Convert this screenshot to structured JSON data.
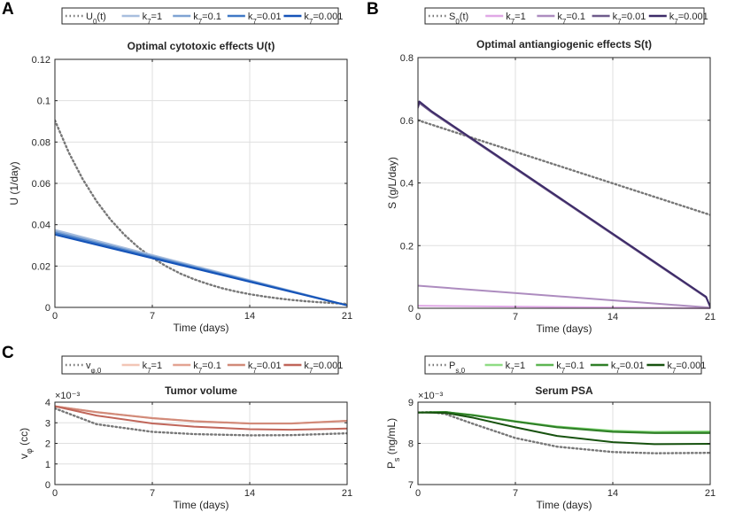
{
  "figure": {
    "panel_labels": [
      "A",
      "B",
      "C"
    ]
  },
  "chart_data": [
    {
      "type": "line",
      "panel_label": "A",
      "title": "Optimal cytotoxic effects U(t)",
      "xlabel": "Time (days)",
      "ylabel": "U (1/day)",
      "xlim": [
        0,
        21
      ],
      "ylim": [
        0,
        0.12
      ],
      "xticks": [
        0,
        7,
        14,
        21
      ],
      "xtick_labels": [
        "0",
        "7",
        "14",
        "21"
      ],
      "yticks": [
        0,
        0.02,
        0.04,
        0.06,
        0.08,
        0.1,
        0.12
      ],
      "ytick_labels": [
        "0",
        "0.02",
        "0.04",
        "0.06",
        "0.08",
        "0.1",
        "0.12"
      ],
      "exponent_label": "",
      "legend": [
        {
          "base": "U",
          "sub": "0",
          "tail": "(t)",
          "color": "#777777",
          "dash": true
        },
        {
          "base": "k",
          "sub": "7",
          "tail": "=1",
          "color": "#a8bede",
          "dash": false
        },
        {
          "base": "k",
          "sub": "7",
          "tail": "=0.1",
          "color": "#7fa3d3",
          "dash": false
        },
        {
          "base": "k",
          "sub": "7",
          "tail": "=0.01",
          "color": "#3f78c6",
          "dash": false
        },
        {
          "base": "k",
          "sub": "7",
          "tail": "=0.001",
          "color": "#1553b8",
          "dash": false
        }
      ],
      "series": [
        {
          "name": "U0(t)",
          "color": "#777777",
          "dash": true,
          "x": [
            0,
            1,
            2,
            3,
            4,
            5,
            6,
            7,
            8,
            9,
            10,
            11,
            12,
            13,
            14,
            15,
            16,
            17,
            18,
            19,
            20,
            21
          ],
          "y": [
            0.0905,
            0.0749,
            0.062,
            0.0513,
            0.0424,
            0.0351,
            0.029,
            0.024,
            0.0199,
            0.0164,
            0.0136,
            0.0113,
            0.0093,
            0.0077,
            0.0064,
            0.0053,
            0.0044,
            0.0036,
            0.003,
            0.0025,
            0.0021,
            0.0017
          ]
        },
        {
          "name": "k7=1",
          "color": "#a8bede",
          "dash": false,
          "x": [
            0,
            21
          ],
          "y": [
            0.0375,
            0.001
          ]
        },
        {
          "name": "k7=0.1",
          "color": "#7fa3d3",
          "dash": false,
          "x": [
            0,
            21
          ],
          "y": [
            0.0367,
            0.001
          ]
        },
        {
          "name": "k7=0.01",
          "color": "#3f78c6",
          "dash": false,
          "x": [
            0,
            21
          ],
          "y": [
            0.036,
            0.001
          ]
        },
        {
          "name": "k7=0.001",
          "color": "#1553b8",
          "dash": false,
          "x": [
            0,
            21
          ],
          "y": [
            0.0352,
            0.001
          ]
        }
      ]
    },
    {
      "type": "line",
      "panel_label": "B",
      "title": "Optimal antiangiogenic effects S(t)",
      "xlabel": "Time (days)",
      "ylabel": "S (g/L/day)",
      "xlim": [
        0,
        21
      ],
      "ylim": [
        0,
        0.8
      ],
      "xticks": [
        0,
        7,
        14,
        21
      ],
      "xtick_labels": [
        "0",
        "7",
        "14",
        "21"
      ],
      "yticks": [
        0,
        0.2,
        0.4,
        0.6,
        0.8
      ],
      "ytick_labels": [
        "0",
        "0.2",
        "0.4",
        "0.6",
        "0.8"
      ],
      "exponent_label": "",
      "legend": [
        {
          "base": "S",
          "sub": "0",
          "tail": "(t)",
          "color": "#777777",
          "dash": true
        },
        {
          "base": "k",
          "sub": "7",
          "tail": "=1",
          "color": "#e0a8e6",
          "dash": false
        },
        {
          "base": "k",
          "sub": "7",
          "tail": "=0.1",
          "color": "#ad8cbf",
          "dash": false
        },
        {
          "base": "k",
          "sub": "7",
          "tail": "=0.01",
          "color": "#6f5b8b",
          "dash": false
        },
        {
          "base": "k",
          "sub": "7",
          "tail": "=0.001",
          "color": "#3d2b68",
          "dash": false
        }
      ],
      "series": [
        {
          "name": "S0(t)",
          "color": "#777777",
          "dash": true,
          "x": [
            0,
            21
          ],
          "y": [
            0.6,
            0.298
          ]
        },
        {
          "name": "k7=1",
          "color": "#e0a8e6",
          "dash": false,
          "x": [
            0,
            21
          ],
          "y": [
            0.008,
            0.0
          ]
        },
        {
          "name": "k7=0.1",
          "color": "#ad8cbf",
          "dash": false,
          "x": [
            0,
            21
          ],
          "y": [
            0.072,
            0.002
          ]
        },
        {
          "name": "k7=0.01",
          "color": "#6f5b8b",
          "dash": false,
          "x": [
            0,
            0.1,
            1,
            20.7,
            21
          ],
          "y": [
            0.64,
            0.655,
            0.625,
            0.035,
            0.005
          ]
        },
        {
          "name": "k7=0.001",
          "color": "#3d2b68",
          "dash": false,
          "x": [
            0,
            0.1,
            1,
            20.7,
            21
          ],
          "y": [
            0.645,
            0.66,
            0.628,
            0.037,
            0.005
          ]
        }
      ]
    },
    {
      "type": "line",
      "panel_label": "C",
      "title": "Tumor volume",
      "xlabel": "Time (days)",
      "ylabel": "vφ (cc)",
      "ylabel_base": "v",
      "ylabel_sub": "φ",
      "ylabel_tail": " (cc)",
      "xlim": [
        0,
        21
      ],
      "ylim": [
        0,
        0.004
      ],
      "xticks": [
        0,
        7,
        14,
        21
      ],
      "xtick_labels": [
        "0",
        "7",
        "14",
        "21"
      ],
      "yticks": [
        0,
        0.001,
        0.002,
        0.003,
        0.004
      ],
      "ytick_labels": [
        "0",
        "1",
        "2",
        "3",
        "4"
      ],
      "exponent_label": "×10⁻³",
      "legend": [
        {
          "base": "v",
          "sub": "φ,0",
          "tail": "",
          "color": "#777777",
          "dash": true
        },
        {
          "base": "k",
          "sub": "7",
          "tail": "=1",
          "color": "#f2c6b6",
          "dash": false
        },
        {
          "base": "k",
          "sub": "7",
          "tail": "=0.1",
          "color": "#e3a392",
          "dash": false
        },
        {
          "base": "k",
          "sub": "7",
          "tail": "=0.01",
          "color": "#d18a79",
          "dash": false
        },
        {
          "base": "k",
          "sub": "7",
          "tail": "=0.001",
          "color": "#c0665a",
          "dash": false
        }
      ],
      "series": [
        {
          "name": "vφ,0",
          "color": "#777777",
          "dash": true,
          "x": [
            0,
            3,
            7,
            10,
            14,
            17,
            21
          ],
          "y": [
            0.0037,
            0.00293,
            0.00256,
            0.00245,
            0.00239,
            0.0024,
            0.00249
          ]
        },
        {
          "name": "k7=1",
          "color": "#f2c6b6",
          "dash": false,
          "x": [
            0,
            3,
            7,
            10,
            14,
            17,
            21
          ],
          "y": [
            0.0038,
            0.00352,
            0.00323,
            0.00308,
            0.00297,
            0.00297,
            0.00309
          ]
        },
        {
          "name": "k7=0.1",
          "color": "#e3a392",
          "dash": false,
          "x": [
            0,
            3,
            7,
            10,
            14,
            17,
            21
          ],
          "y": [
            0.0038,
            0.00352,
            0.00323,
            0.00308,
            0.00297,
            0.00297,
            0.0031
          ]
        },
        {
          "name": "k7=0.01",
          "color": "#d18a79",
          "dash": false,
          "x": [
            0,
            3,
            7,
            10,
            14,
            17,
            21
          ],
          "y": [
            0.0038,
            0.00351,
            0.00322,
            0.00307,
            0.00296,
            0.00296,
            0.00309
          ]
        },
        {
          "name": "k7=0.001",
          "color": "#c0665a",
          "dash": false,
          "x": [
            0,
            3,
            7,
            10,
            14,
            17,
            21
          ],
          "y": [
            0.0038,
            0.00335,
            0.00297,
            0.00281,
            0.00269,
            0.00266,
            0.00272
          ]
        }
      ]
    },
    {
      "type": "line",
      "panel_label": "",
      "title": "Serum PSA",
      "xlabel": "Time (days)",
      "ylabel": "Ps (ng/mL)",
      "ylabel_base": "P",
      "ylabel_sub": "s",
      "ylabel_tail": " (ng/mL)",
      "xlim": [
        0,
        21
      ],
      "ylim": [
        0.007,
        0.009
      ],
      "xticks": [
        0,
        7,
        14,
        21
      ],
      "xtick_labels": [
        "0",
        "7",
        "14",
        "21"
      ],
      "yticks": [
        0.007,
        0.008,
        0.009
      ],
      "ytick_labels": [
        "7",
        "8",
        "9"
      ],
      "exponent_label": "×10⁻³",
      "legend": [
        {
          "base": "P",
          "sub": "s,0",
          "tail": "",
          "color": "#777777",
          "dash": true
        },
        {
          "base": "k",
          "sub": "7",
          "tail": "=1",
          "color": "#8fdc84",
          "dash": false
        },
        {
          "base": "k",
          "sub": "7",
          "tail": "=0.1",
          "color": "#5db552",
          "dash": false
        },
        {
          "base": "k",
          "sub": "7",
          "tail": "=0.01",
          "color": "#2f7f27",
          "dash": false
        },
        {
          "base": "k",
          "sub": "7",
          "tail": "=0.001",
          "color": "#17520f",
          "dash": false
        }
      ],
      "series": [
        {
          "name": "Ps,0",
          "color": "#777777",
          "dash": true,
          "x": [
            0,
            1,
            2,
            4,
            7,
            10,
            14,
            17,
            21
          ],
          "y": [
            0.00875,
            0.00876,
            0.00871,
            0.00847,
            0.00813,
            0.00792,
            0.00779,
            0.00776,
            0.00777
          ]
        },
        {
          "name": "k7=1",
          "color": "#8fdc84",
          "dash": false,
          "x": [
            0,
            2,
            4,
            7,
            10,
            14,
            17,
            21
          ],
          "y": [
            0.00875,
            0.00876,
            0.00869,
            0.00854,
            0.00841,
            0.00831,
            0.00828,
            0.00829
          ]
        },
        {
          "name": "k7=0.1",
          "color": "#5db552",
          "dash": false,
          "x": [
            0,
            2,
            4,
            7,
            10,
            14,
            17,
            21
          ],
          "y": [
            0.00875,
            0.00876,
            0.00868,
            0.00853,
            0.0084,
            0.00829,
            0.00826,
            0.00827
          ]
        },
        {
          "name": "k7=0.01",
          "color": "#2f7f27",
          "dash": false,
          "x": [
            0,
            2,
            4,
            7,
            10,
            14,
            17,
            21
          ],
          "y": [
            0.00875,
            0.00876,
            0.00868,
            0.00853,
            0.00839,
            0.00828,
            0.00825,
            0.00825
          ]
        },
        {
          "name": "k7=0.001",
          "color": "#17520f",
          "dash": false,
          "x": [
            0,
            2,
            4,
            7,
            10,
            14,
            17,
            21
          ],
          "y": [
            0.00875,
            0.00874,
            0.00862,
            0.00839,
            0.00818,
            0.00803,
            0.00798,
            0.00799
          ]
        }
      ]
    }
  ]
}
